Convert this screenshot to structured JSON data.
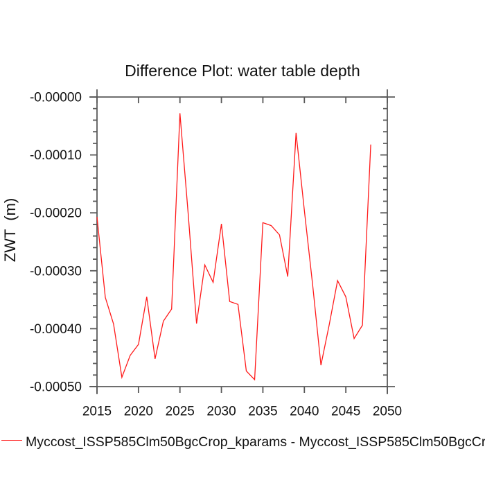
{
  "chart_data": {
    "type": "line",
    "title": "Difference Plot: water table depth",
    "xlabel": "",
    "ylabel": "ZWT  (m)",
    "xlim": [
      2015,
      2050
    ],
    "ylim": [
      -0.0005,
      0
    ],
    "grid": false,
    "x_major_ticks": [
      2015,
      2020,
      2025,
      2030,
      2035,
      2040,
      2045,
      2050
    ],
    "x_tick_labels": [
      "2015",
      "2020",
      "2025",
      "2030",
      "2035",
      "2040",
      "2045",
      "2050"
    ],
    "y_major_ticks": [
      0,
      -0.0001,
      -0.0002,
      -0.0003,
      -0.0004,
      -0.0005
    ],
    "y_tick_labels": [
      "-0.00000",
      "-0.00010",
      "-0.00020",
      "-0.00030",
      "-0.00040",
      "-0.00050"
    ],
    "y_minor_step": 2e-05,
    "line_color": "#ff1a1a",
    "axis_color": "#595959",
    "legend_position": "bottom-left",
    "series": [
      {
        "name": "Myccost_ISSP585Clm50BgcCrop_kparams - Myccost_ISSP585Clm50BgcCr",
        "x": [
          2015,
          2016,
          2017,
          2018,
          2019,
          2020,
          2021,
          2022,
          2023,
          2024,
          2025,
          2026,
          2027,
          2028,
          2029,
          2030,
          2031,
          2032,
          2033,
          2034,
          2035,
          2036,
          2037,
          2038,
          2039,
          2040,
          2041,
          2042,
          2043,
          2044,
          2045,
          2046,
          2047,
          2048
        ],
        "values": [
          -0.000207,
          -0.000346,
          -0.000392,
          -0.000484,
          -0.000446,
          -0.000427,
          -0.000345,
          -0.000452,
          -0.000387,
          -0.000366,
          -2.8e-05,
          -0.000203,
          -0.000391,
          -0.00029,
          -0.00032,
          -0.000219,
          -0.000353,
          -0.000358,
          -0.000473,
          -0.000488,
          -0.000217,
          -0.000222,
          -0.000238,
          -0.00031,
          -6.2e-05,
          -0.000196,
          -0.000325,
          -0.000463,
          -0.000393,
          -0.000317,
          -0.000345,
          -0.000417,
          -0.000394,
          -8.2e-05
        ]
      }
    ]
  },
  "legend": {
    "label": "Myccost_ISSP585Clm50BgcCrop_kparams - Myccost_ISSP585Clm50BgcCr"
  }
}
